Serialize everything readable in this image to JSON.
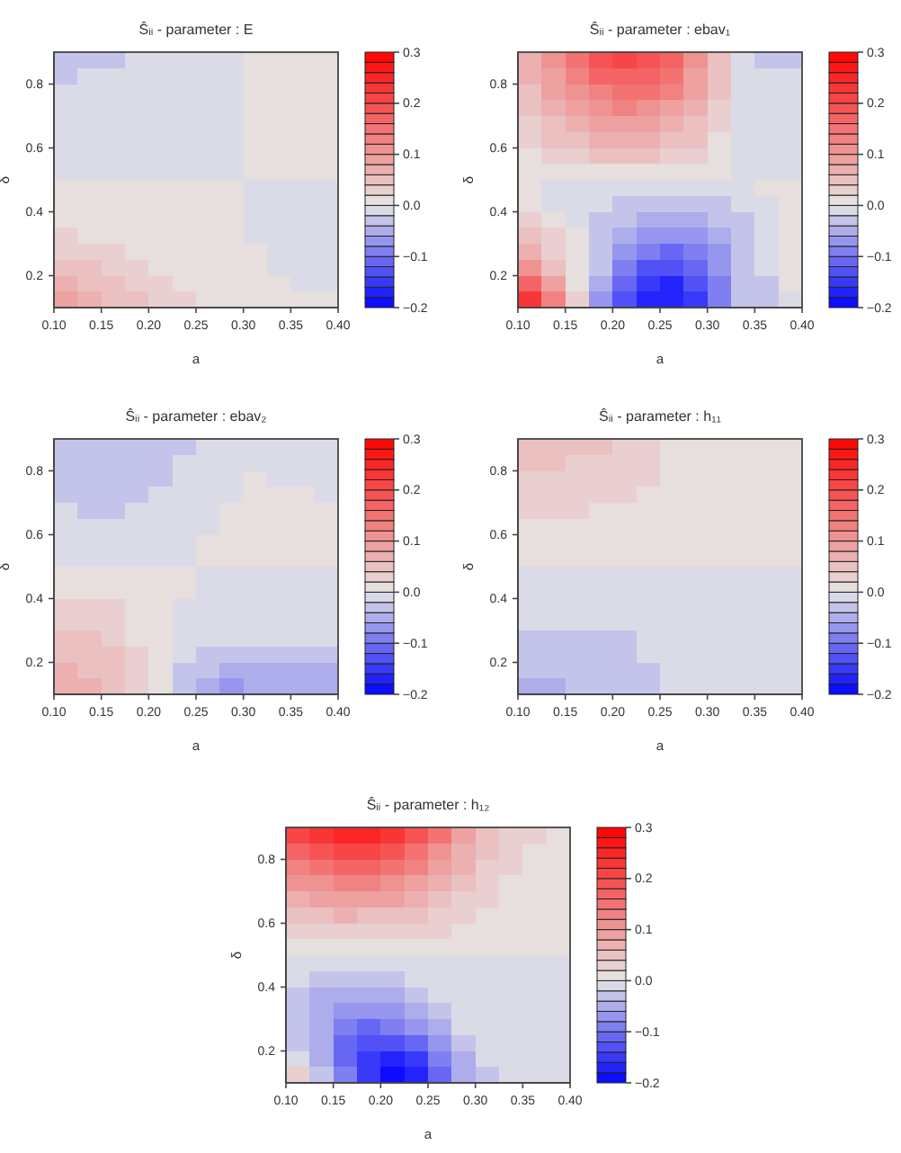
{
  "chart_data": [
    {
      "type": "heatmap",
      "title": "Ŝᵢᵢ - parameter : E",
      "xlabel": "a",
      "ylabel": "δ",
      "x": [
        0.1125,
        0.1375,
        0.1625,
        0.1875,
        0.2125,
        0.2375,
        0.2625,
        0.2875,
        0.3125,
        0.3375,
        0.3625,
        0.3875
      ],
      "y": [
        0.875,
        0.825,
        0.775,
        0.725,
        0.675,
        0.625,
        0.575,
        0.525,
        0.475,
        0.425,
        0.375,
        0.325,
        0.275,
        0.225,
        0.175,
        0.125
      ],
      "cells": [
        [
          -0.03,
          -0.03,
          -0.03,
          -0.01,
          -0.01,
          -0.01,
          -0.01,
          -0.01,
          0.01,
          0.01,
          0.01,
          0.01
        ],
        [
          -0.03,
          -0.01,
          -0.01,
          -0.01,
          -0.01,
          -0.01,
          -0.01,
          -0.01,
          0.01,
          0.01,
          0.01,
          0.01
        ],
        [
          -0.01,
          -0.01,
          -0.01,
          -0.01,
          -0.01,
          -0.01,
          -0.01,
          -0.01,
          0.01,
          0.01,
          0.01,
          0.01
        ],
        [
          -0.01,
          -0.01,
          -0.01,
          -0.01,
          -0.01,
          -0.01,
          -0.01,
          -0.01,
          0.01,
          0.01,
          0.01,
          0.01
        ],
        [
          -0.01,
          -0.01,
          -0.01,
          -0.01,
          -0.01,
          -0.01,
          -0.01,
          -0.01,
          0.01,
          0.01,
          0.01,
          0.01
        ],
        [
          -0.01,
          -0.01,
          -0.01,
          -0.01,
          -0.01,
          -0.01,
          -0.01,
          -0.01,
          0.01,
          0.01,
          0.01,
          0.01
        ],
        [
          -0.01,
          -0.01,
          -0.01,
          -0.01,
          -0.01,
          -0.01,
          -0.01,
          -0.01,
          0.01,
          0.01,
          0.01,
          0.01
        ],
        [
          -0.01,
          -0.01,
          -0.01,
          -0.01,
          -0.01,
          -0.01,
          -0.01,
          -0.01,
          0.01,
          0.01,
          0.01,
          0.01
        ],
        [
          0.01,
          0.01,
          0.01,
          0.01,
          0.01,
          0.01,
          0.01,
          0.01,
          -0.01,
          -0.01,
          -0.01,
          -0.01
        ],
        [
          0.01,
          0.01,
          0.01,
          0.01,
          0.01,
          0.01,
          0.01,
          0.01,
          -0.01,
          -0.01,
          -0.01,
          -0.01
        ],
        [
          0.01,
          0.01,
          0.01,
          0.01,
          0.01,
          0.01,
          0.01,
          0.01,
          -0.01,
          -0.01,
          -0.01,
          -0.01
        ],
        [
          0.03,
          0.01,
          0.01,
          0.01,
          0.01,
          0.01,
          0.01,
          0.01,
          -0.01,
          -0.01,
          -0.01,
          -0.01
        ],
        [
          0.03,
          0.03,
          0.03,
          0.01,
          0.01,
          0.01,
          0.01,
          0.01,
          0.01,
          -0.01,
          -0.01,
          -0.01
        ],
        [
          0.05,
          0.05,
          0.03,
          0.03,
          0.01,
          0.01,
          0.01,
          0.01,
          0.01,
          -0.01,
          -0.01,
          -0.01
        ],
        [
          0.07,
          0.05,
          0.05,
          0.03,
          0.03,
          0.01,
          0.01,
          0.01,
          0.01,
          0.01,
          -0.01,
          -0.01
        ],
        [
          0.09,
          0.07,
          0.05,
          0.05,
          0.03,
          0.03,
          0.01,
          0.01,
          0.01,
          0.01,
          0.01,
          0.01
        ]
      ],
      "xlim": [
        0.1,
        0.4
      ],
      "ylim": [
        0.1,
        0.9
      ],
      "xticks": [
        {
          "value": 0.1,
          "label": "0.10"
        },
        0.15,
        {
          "value": 0.2,
          "label": "0.20"
        },
        0.25,
        {
          "value": 0.3,
          "label": "0.30"
        },
        0.35,
        {
          "value": 0.4,
          "label": "0.40"
        }
      ],
      "yticks": [
        0.2,
        0.4,
        0.6,
        0.8
      ],
      "clim": [
        -0.2,
        0.3
      ],
      "cticks": [
        {
          "value": -0.2,
          "label": "−0.2"
        },
        {
          "value": -0.1,
          "label": "−0.1"
        },
        {
          "value": 0,
          "label": "0.0"
        },
        0.1,
        0.2,
        0.3
      ]
    },
    {
      "type": "heatmap",
      "title": "Ŝᵢᵢ - parameter : ebav₁",
      "xlabel": "a",
      "ylabel": "δ",
      "x": [
        0.1125,
        0.1375,
        0.1625,
        0.1875,
        0.2125,
        0.2375,
        0.2625,
        0.2875,
        0.3125,
        0.3375,
        0.3625,
        0.3875
      ],
      "y": [
        0.875,
        0.825,
        0.775,
        0.725,
        0.675,
        0.625,
        0.575,
        0.525,
        0.475,
        0.425,
        0.375,
        0.325,
        0.275,
        0.225,
        0.175,
        0.125
      ],
      "cells": [
        [
          0.07,
          0.11,
          0.15,
          0.18,
          0.2,
          0.19,
          0.16,
          0.11,
          0.05,
          -0.01,
          -0.03,
          -0.03
        ],
        [
          0.06,
          0.09,
          0.13,
          0.16,
          0.17,
          0.16,
          0.14,
          0.09,
          0.04,
          -0.01,
          -0.01,
          -0.01
        ],
        [
          0.05,
          0.08,
          0.11,
          0.13,
          0.15,
          0.14,
          0.12,
          0.08,
          0.04,
          -0.01,
          -0.01,
          -0.01
        ],
        [
          0.04,
          0.06,
          0.09,
          0.11,
          0.12,
          0.11,
          0.09,
          0.06,
          0.03,
          -0.01,
          -0.01,
          -0.01
        ],
        [
          0.03,
          0.05,
          0.07,
          0.09,
          0.09,
          0.09,
          0.07,
          0.05,
          0.03,
          -0.01,
          -0.01,
          -0.01
        ],
        [
          0.03,
          0.04,
          0.05,
          0.06,
          0.07,
          0.06,
          0.05,
          0.04,
          0.01,
          -0.01,
          -0.01,
          -0.01
        ],
        [
          0.01,
          0.03,
          0.03,
          0.04,
          0.04,
          0.04,
          0.03,
          0.03,
          0.01,
          -0.01,
          -0.01,
          -0.01
        ],
        [
          0.01,
          0.01,
          0.01,
          0.01,
          0.01,
          0.01,
          0.01,
          0.01,
          0.01,
          -0.01,
          -0.01,
          -0.01
        ],
        [
          0.01,
          -0.01,
          -0.01,
          -0.01,
          -0.01,
          -0.01,
          -0.01,
          -0.01,
          -0.01,
          -0.01,
          0.01,
          0.01
        ],
        [
          0.01,
          -0.01,
          -0.01,
          -0.01,
          -0.03,
          -0.03,
          -0.04,
          -0.04,
          -0.03,
          -0.01,
          -0.01,
          0.01
        ],
        [
          0.03,
          0.01,
          -0.01,
          -0.03,
          -0.03,
          -0.05,
          -0.06,
          -0.06,
          -0.04,
          -0.03,
          -0.01,
          0.01
        ],
        [
          0.04,
          0.03,
          0.01,
          -0.03,
          -0.05,
          -0.07,
          -0.08,
          -0.08,
          -0.05,
          -0.03,
          -0.01,
          0.01
        ],
        [
          0.07,
          0.03,
          0.01,
          -0.03,
          -0.07,
          -0.1,
          -0.11,
          -0.1,
          -0.07,
          -0.03,
          -0.01,
          0.01
        ],
        [
          0.11,
          0.05,
          0.01,
          -0.04,
          -0.09,
          -0.13,
          -0.14,
          -0.12,
          -0.08,
          -0.04,
          -0.01,
          0.01
        ],
        [
          0.16,
          0.08,
          0.01,
          -0.06,
          -0.12,
          -0.16,
          -0.17,
          -0.14,
          -0.09,
          -0.04,
          -0.03,
          0.01
        ],
        [
          0.22,
          0.13,
          0.03,
          -0.07,
          -0.14,
          -0.18,
          -0.18,
          -0.15,
          -0.09,
          -0.04,
          -0.03,
          -0.01
        ]
      ],
      "xlim": [
        0.1,
        0.4
      ],
      "ylim": [
        0.1,
        0.9
      ],
      "xticks": [
        {
          "value": 0.1,
          "label": "0.10"
        },
        0.15,
        {
          "value": 0.2,
          "label": "0.20"
        },
        0.25,
        {
          "value": 0.3,
          "label": "0.30"
        },
        0.35,
        {
          "value": 0.4,
          "label": "0.40"
        }
      ],
      "yticks": [
        0.2,
        0.4,
        0.6,
        0.8
      ],
      "clim": [
        -0.2,
        0.3
      ],
      "cticks": [
        {
          "value": -0.2,
          "label": "−0.2"
        },
        {
          "value": -0.1,
          "label": "−0.1"
        },
        {
          "value": 0,
          "label": "0.0"
        },
        0.1,
        0.2,
        0.3
      ]
    },
    {
      "type": "heatmap",
      "title": "Ŝᵢᵢ - parameter : ebav₂",
      "xlabel": "a",
      "ylabel": "δ",
      "x": [
        0.1125,
        0.1375,
        0.1625,
        0.1875,
        0.2125,
        0.2375,
        0.2625,
        0.2875,
        0.3125,
        0.3375,
        0.3625,
        0.3875
      ],
      "y": [
        0.875,
        0.825,
        0.775,
        0.725,
        0.675,
        0.625,
        0.575,
        0.525,
        0.475,
        0.425,
        0.375,
        0.325,
        0.275,
        0.225,
        0.175,
        0.125
      ],
      "cells": [
        [
          -0.03,
          -0.03,
          -0.03,
          -0.03,
          -0.03,
          -0.03,
          -0.01,
          -0.01,
          -0.01,
          -0.01,
          -0.01,
          -0.01
        ],
        [
          -0.03,
          -0.03,
          -0.03,
          -0.03,
          -0.03,
          -0.01,
          -0.01,
          -0.01,
          -0.01,
          -0.01,
          -0.01,
          -0.01
        ],
        [
          -0.03,
          -0.03,
          -0.03,
          -0.03,
          -0.03,
          -0.01,
          -0.01,
          -0.01,
          0.01,
          -0.01,
          -0.01,
          -0.01
        ],
        [
          -0.03,
          -0.03,
          -0.03,
          -0.03,
          -0.01,
          -0.01,
          -0.01,
          -0.01,
          0.01,
          0.01,
          0.01,
          -0.01
        ],
        [
          -0.01,
          -0.03,
          -0.03,
          -0.01,
          -0.01,
          -0.01,
          -0.01,
          0.01,
          0.01,
          0.01,
          0.01,
          0.01
        ],
        [
          -0.01,
          -0.01,
          -0.01,
          -0.01,
          -0.01,
          -0.01,
          -0.01,
          0.01,
          0.01,
          0.01,
          0.01,
          0.01
        ],
        [
          -0.01,
          -0.01,
          -0.01,
          -0.01,
          -0.01,
          -0.01,
          0.01,
          0.01,
          0.01,
          0.01,
          0.01,
          0.01
        ],
        [
          -0.01,
          -0.01,
          -0.01,
          -0.01,
          -0.01,
          -0.01,
          0.01,
          0.01,
          0.01,
          0.01,
          0.01,
          0.01
        ],
        [
          0.01,
          0.01,
          0.01,
          0.01,
          0.01,
          0.01,
          -0.01,
          -0.01,
          -0.01,
          -0.01,
          -0.01,
          -0.01
        ],
        [
          0.01,
          0.01,
          0.01,
          0.01,
          0.01,
          0.01,
          -0.01,
          -0.01,
          -0.01,
          -0.01,
          -0.01,
          -0.01
        ],
        [
          0.03,
          0.03,
          0.03,
          0.01,
          0.01,
          -0.01,
          -0.01,
          -0.01,
          -0.01,
          -0.01,
          -0.01,
          -0.01
        ],
        [
          0.03,
          0.03,
          0.03,
          0.01,
          0.01,
          -0.01,
          -0.01,
          -0.01,
          -0.01,
          -0.01,
          -0.01,
          -0.01
        ],
        [
          0.05,
          0.05,
          0.03,
          0.01,
          0.01,
          -0.01,
          -0.01,
          -0.01,
          -0.01,
          -0.01,
          -0.01,
          -0.01
        ],
        [
          0.05,
          0.05,
          0.05,
          0.03,
          0.01,
          -0.01,
          -0.03,
          -0.03,
          -0.03,
          -0.03,
          -0.03,
          -0.03
        ],
        [
          0.07,
          0.05,
          0.05,
          0.03,
          0.01,
          -0.03,
          -0.03,
          -0.05,
          -0.05,
          -0.05,
          -0.05,
          -0.05
        ],
        [
          0.07,
          0.07,
          0.05,
          0.03,
          0.01,
          -0.03,
          -0.05,
          -0.07,
          -0.05,
          -0.05,
          -0.05,
          -0.05
        ]
      ],
      "xlim": [
        0.1,
        0.4
      ],
      "ylim": [
        0.1,
        0.9
      ],
      "xticks": [
        {
          "value": 0.1,
          "label": "0.10"
        },
        0.15,
        {
          "value": 0.2,
          "label": "0.20"
        },
        0.25,
        {
          "value": 0.3,
          "label": "0.30"
        },
        0.35,
        {
          "value": 0.4,
          "label": "0.40"
        }
      ],
      "yticks": [
        0.2,
        0.4,
        0.6,
        0.8
      ],
      "clim": [
        -0.2,
        0.3
      ],
      "cticks": [
        {
          "value": -0.2,
          "label": "−0.2"
        },
        {
          "value": -0.1,
          "label": "−0.1"
        },
        {
          "value": 0,
          "label": "0.0"
        },
        0.1,
        0.2,
        0.3
      ]
    },
    {
      "type": "heatmap",
      "title": "Ŝᵢᵢ - parameter : h₁₁",
      "xlabel": "a",
      "ylabel": "δ",
      "x": [
        0.1125,
        0.1375,
        0.1625,
        0.1875,
        0.2125,
        0.2375,
        0.2625,
        0.2875,
        0.3125,
        0.3375,
        0.3625,
        0.3875
      ],
      "y": [
        0.875,
        0.825,
        0.775,
        0.725,
        0.675,
        0.625,
        0.575,
        0.525,
        0.475,
        0.425,
        0.375,
        0.325,
        0.275,
        0.225,
        0.175,
        0.125
      ],
      "cells": [
        [
          0.05,
          0.05,
          0.05,
          0.05,
          0.03,
          0.03,
          0.01,
          0.01,
          0.01,
          0.01,
          0.01,
          0.01
        ],
        [
          0.05,
          0.05,
          0.03,
          0.03,
          0.03,
          0.03,
          0.01,
          0.01,
          0.01,
          0.01,
          0.01,
          0.01
        ],
        [
          0.03,
          0.03,
          0.03,
          0.03,
          0.03,
          0.03,
          0.01,
          0.01,
          0.01,
          0.01,
          0.01,
          0.01
        ],
        [
          0.03,
          0.03,
          0.03,
          0.03,
          0.03,
          0.01,
          0.01,
          0.01,
          0.01,
          0.01,
          0.01,
          0.01
        ],
        [
          0.03,
          0.03,
          0.03,
          0.01,
          0.01,
          0.01,
          0.01,
          0.01,
          0.01,
          0.01,
          0.01,
          0.01
        ],
        [
          0.01,
          0.01,
          0.01,
          0.01,
          0.01,
          0.01,
          0.01,
          0.01,
          0.01,
          0.01,
          0.01,
          0.01
        ],
        [
          0.01,
          0.01,
          0.01,
          0.01,
          0.01,
          0.01,
          0.01,
          0.01,
          0.01,
          0.01,
          0.01,
          0.01
        ],
        [
          0.01,
          0.01,
          0.01,
          0.01,
          0.01,
          0.01,
          0.01,
          0.01,
          0.01,
          0.01,
          0.01,
          0.01
        ],
        [
          -0.01,
          -0.01,
          -0.01,
          -0.01,
          -0.01,
          -0.01,
          -0.01,
          -0.01,
          -0.01,
          -0.01,
          -0.01,
          -0.01
        ],
        [
          -0.01,
          -0.01,
          -0.01,
          -0.01,
          -0.01,
          -0.01,
          -0.01,
          -0.01,
          -0.01,
          -0.01,
          -0.01,
          -0.01
        ],
        [
          -0.01,
          -0.01,
          -0.01,
          -0.01,
          -0.01,
          -0.01,
          -0.01,
          -0.01,
          -0.01,
          -0.01,
          -0.01,
          -0.01
        ],
        [
          -0.01,
          -0.01,
          -0.01,
          -0.01,
          -0.01,
          -0.01,
          -0.01,
          -0.01,
          -0.01,
          -0.01,
          -0.01,
          -0.01
        ],
        [
          -0.03,
          -0.03,
          -0.03,
          -0.03,
          -0.03,
          -0.01,
          -0.01,
          -0.01,
          -0.01,
          -0.01,
          -0.01,
          -0.01
        ],
        [
          -0.03,
          -0.03,
          -0.03,
          -0.03,
          -0.03,
          -0.01,
          -0.01,
          -0.01,
          -0.01,
          -0.01,
          -0.01,
          -0.01
        ],
        [
          -0.03,
          -0.03,
          -0.03,
          -0.03,
          -0.03,
          -0.03,
          -0.01,
          -0.01,
          -0.01,
          -0.01,
          -0.01,
          -0.01
        ],
        [
          -0.05,
          -0.05,
          -0.03,
          -0.03,
          -0.03,
          -0.03,
          -0.01,
          -0.01,
          -0.01,
          -0.01,
          -0.01,
          -0.01
        ]
      ],
      "xlim": [
        0.1,
        0.4
      ],
      "ylim": [
        0.1,
        0.9
      ],
      "xticks": [
        {
          "value": 0.1,
          "label": "0.10"
        },
        0.15,
        {
          "value": 0.2,
          "label": "0.20"
        },
        0.25,
        {
          "value": 0.3,
          "label": "0.30"
        },
        0.35,
        {
          "value": 0.4,
          "label": "0.40"
        }
      ],
      "yticks": [
        0.2,
        0.4,
        0.6,
        0.8
      ],
      "clim": [
        -0.2,
        0.3
      ],
      "cticks": [
        {
          "value": -0.2,
          "label": "−0.2"
        },
        {
          "value": -0.1,
          "label": "−0.1"
        },
        {
          "value": 0,
          "label": "0.0"
        },
        0.1,
        0.2,
        0.3
      ]
    },
    {
      "type": "heatmap",
      "title": "Ŝᵢᵢ - parameter : h₁₂",
      "xlabel": "a",
      "ylabel": "δ",
      "x": [
        0.1125,
        0.1375,
        0.1625,
        0.1875,
        0.2125,
        0.2375,
        0.2625,
        0.2875,
        0.3125,
        0.3375,
        0.3625,
        0.3875
      ],
      "y": [
        0.875,
        0.825,
        0.775,
        0.725,
        0.675,
        0.625,
        0.575,
        0.525,
        0.475,
        0.425,
        0.375,
        0.325,
        0.275,
        0.225,
        0.175,
        0.125
      ],
      "cells": [
        [
          0.2,
          0.23,
          0.25,
          0.25,
          0.23,
          0.19,
          0.14,
          0.09,
          0.05,
          0.03,
          0.03,
          0.01
        ],
        [
          0.16,
          0.19,
          0.2,
          0.2,
          0.18,
          0.15,
          0.11,
          0.07,
          0.04,
          0.03,
          0.01,
          0.01
        ],
        [
          0.13,
          0.15,
          0.16,
          0.16,
          0.14,
          0.12,
          0.09,
          0.06,
          0.03,
          0.03,
          0.01,
          0.01
        ],
        [
          0.1,
          0.11,
          0.12,
          0.12,
          0.11,
          0.09,
          0.07,
          0.04,
          0.03,
          0.01,
          0.01,
          0.01
        ],
        [
          0.07,
          0.08,
          0.09,
          0.08,
          0.08,
          0.06,
          0.05,
          0.03,
          0.03,
          0.01,
          0.01,
          0.01
        ],
        [
          0.04,
          0.05,
          0.06,
          0.05,
          0.05,
          0.04,
          0.03,
          0.03,
          0.01,
          0.01,
          0.01,
          0.01
        ],
        [
          0.03,
          0.03,
          0.03,
          0.03,
          0.03,
          0.03,
          0.03,
          0.01,
          0.01,
          0.01,
          0.01,
          0.01
        ],
        [
          0.01,
          0.01,
          0.01,
          0.01,
          0.01,
          0.01,
          0.01,
          0.01,
          0.01,
          0.01,
          0.01,
          0.01
        ],
        [
          -0.01,
          -0.01,
          -0.01,
          -0.01,
          -0.01,
          -0.01,
          -0.01,
          -0.01,
          -0.01,
          -0.01,
          -0.01,
          -0.01
        ],
        [
          -0.01,
          -0.03,
          -0.03,
          -0.03,
          -0.03,
          -0.01,
          -0.01,
          -0.01,
          -0.01,
          -0.01,
          -0.01,
          -0.01
        ],
        [
          -0.03,
          -0.05,
          -0.06,
          -0.06,
          -0.05,
          -0.03,
          -0.01,
          -0.01,
          -0.01,
          -0.01,
          -0.01,
          -0.01
        ],
        [
          -0.03,
          -0.06,
          -0.08,
          -0.08,
          -0.07,
          -0.05,
          -0.03,
          -0.01,
          -0.01,
          -0.01,
          -0.01,
          -0.01
        ],
        [
          -0.03,
          -0.06,
          -0.1,
          -0.11,
          -0.1,
          -0.08,
          -0.05,
          -0.01,
          -0.01,
          -0.01,
          -0.01,
          -0.01
        ],
        [
          -0.03,
          -0.06,
          -0.11,
          -0.14,
          -0.14,
          -0.12,
          -0.08,
          -0.03,
          -0.01,
          -0.01,
          -0.01,
          -0.01
        ],
        [
          -0.01,
          -0.05,
          -0.11,
          -0.16,
          -0.17,
          -0.15,
          -0.1,
          -0.05,
          -0.01,
          -0.01,
          -0.01,
          -0.01
        ],
        [
          0.03,
          -0.03,
          -0.1,
          -0.16,
          -0.19,
          -0.17,
          -0.12,
          -0.06,
          -0.03,
          -0.01,
          -0.01,
          -0.01
        ]
      ],
      "xlim": [
        0.1,
        0.4
      ],
      "ylim": [
        0.1,
        0.9
      ],
      "xticks": [
        {
          "value": 0.1,
          "label": "0.10"
        },
        0.15,
        {
          "value": 0.2,
          "label": "0.20"
        },
        0.25,
        {
          "value": 0.3,
          "label": "0.30"
        },
        0.35,
        {
          "value": 0.4,
          "label": "0.40"
        }
      ],
      "yticks": [
        0.2,
        0.4,
        0.6,
        0.8
      ],
      "clim": [
        -0.2,
        0.3
      ],
      "cticks": [
        {
          "value": -0.2,
          "label": "−0.2"
        },
        {
          "value": -0.1,
          "label": "−0.1"
        },
        {
          "value": 0,
          "label": "0.0"
        },
        0.1,
        0.2,
        0.3
      ]
    }
  ]
}
